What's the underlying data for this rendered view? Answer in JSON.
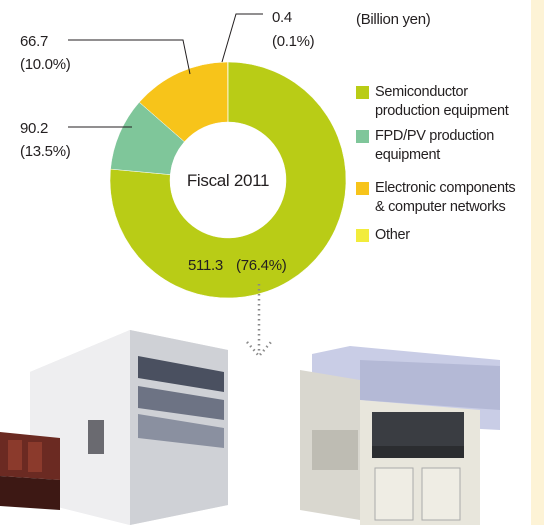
{
  "chart_data": {
    "type": "donut",
    "unit_label": "(Billion yen)",
    "center_label": "Fiscal 2011",
    "series": [
      {
        "name": "Semiconductor production equipment",
        "color": "#b9cc16"
      },
      {
        "name": "FPD/PV production equipment",
        "color": "#7fc69a"
      },
      {
        "name": "Electronic components & computer networks",
        "color": "#f7c41a"
      },
      {
        "name": "Other",
        "color": "#f2ec3b"
      }
    ],
    "values": [
      511.3,
      66.7,
      90.2,
      0.4
    ],
    "percent_labels": [
      "(76.4%)",
      "(10.0%)",
      "(13.5%)",
      "(0.1%)"
    ]
  }
}
